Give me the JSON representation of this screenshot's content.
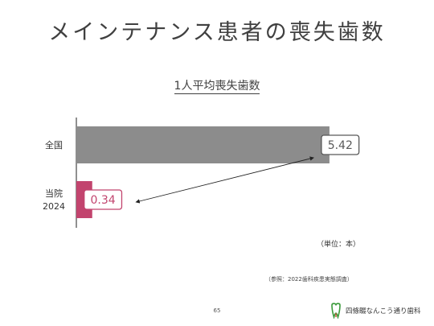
{
  "slide": {
    "title": "メインテナンス患者の喪失歯数",
    "unit": "（単位：本）",
    "source": "（参照：2022歯科疾患実態調査）",
    "page_number": "65",
    "clinic_name": "四條畷なんこう通り歯科"
  },
  "chart_data": {
    "type": "bar",
    "orientation": "horizontal",
    "title": "1人平均喪失歯数",
    "categories": [
      "全国",
      "当院\n2024"
    ],
    "values": [
      5.42,
      0.34
    ],
    "value_labels": [
      "5.42",
      "0.34"
    ],
    "xlim": [
      0,
      5.8
    ],
    "bar_colors": [
      "#8c8c8c",
      "#c2446e"
    ],
    "label_colors": [
      "#595959",
      "#c2446e"
    ],
    "grid": false,
    "legend": "none",
    "annotation": "arrow from 0.34 label to 5.42 label"
  }
}
